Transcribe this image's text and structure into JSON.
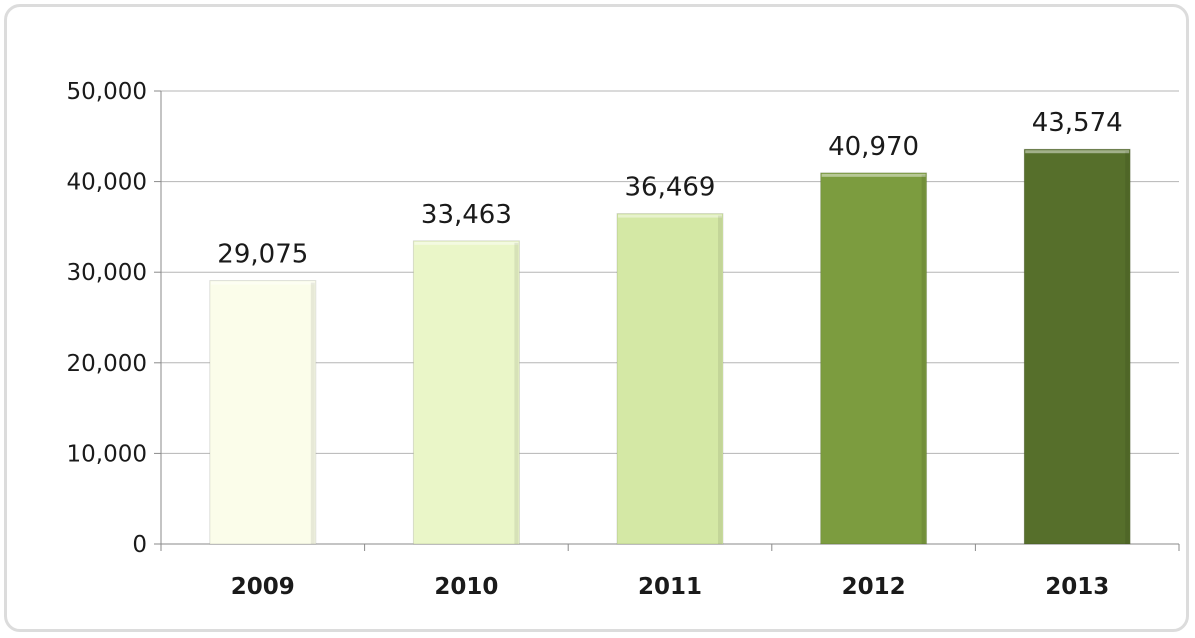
{
  "chart_data": {
    "type": "bar",
    "title": "",
    "xlabel": "",
    "ylabel": "",
    "categories": [
      "2009",
      "2010",
      "2011",
      "2012",
      "2013"
    ],
    "values": [
      29075,
      33463,
      36469,
      40970,
      43574
    ],
    "value_labels": [
      "29,075",
      "33,463",
      "36,469",
      "40,970",
      "43,574"
    ],
    "ylim": [
      0,
      50000
    ],
    "y_ticks": [
      0,
      10000,
      20000,
      30000,
      40000,
      50000
    ],
    "y_tick_labels": [
      "0",
      "10,000",
      "20,000",
      "30,000",
      "40,000",
      "50,000"
    ],
    "grid": true,
    "legend": "none",
    "bar_colors": [
      "#fbfdea",
      "#eaf6c8",
      "#d4e8a5",
      "#7c9c3f",
      "#566f2b"
    ]
  }
}
